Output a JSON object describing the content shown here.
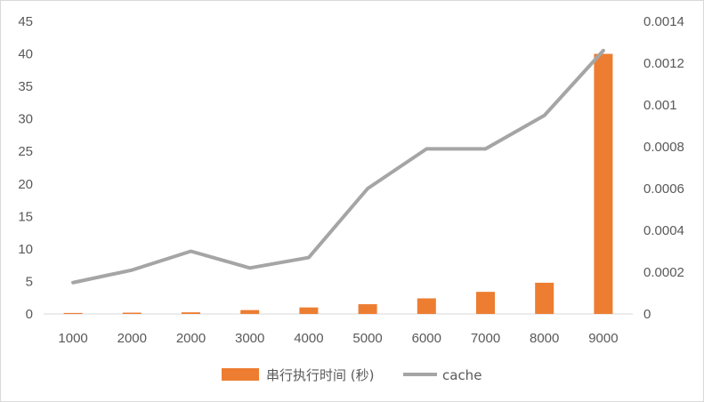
{
  "chart_data": {
    "type": "bar+line",
    "categories": [
      "1000",
      "2000",
      "2000",
      "3000",
      "4000",
      "5000",
      "6000",
      "7000",
      "8000",
      "9000"
    ],
    "series": [
      {
        "name": "串行执行时间 (秒)",
        "type": "bar",
        "axis": "left",
        "color": "#ED7D31",
        "values": [
          0.15,
          0.2,
          0.25,
          0.6,
          1.0,
          1.5,
          2.4,
          3.4,
          4.8,
          40
        ]
      },
      {
        "name": "cache",
        "type": "line",
        "axis": "right",
        "color": "#A5A5A5",
        "values": [
          0.00015,
          0.00021,
          0.0003,
          0.00022,
          0.00027,
          0.0006,
          0.00079,
          0.00079,
          0.00095,
          0.00126
        ]
      }
    ],
    "y_left": {
      "min": 0,
      "max": 45,
      "ticks": [
        "0",
        "5",
        "10",
        "15",
        "20",
        "25",
        "30",
        "35",
        "40",
        "45"
      ]
    },
    "y_right": {
      "min": 0,
      "max": 0.0014,
      "ticks": [
        "0",
        "0.0002",
        "0.0004",
        "0.0006",
        "0.0008",
        "0.001",
        "0.0012",
        "0.0014"
      ]
    },
    "grid": false,
    "legend": "bottom-center"
  }
}
